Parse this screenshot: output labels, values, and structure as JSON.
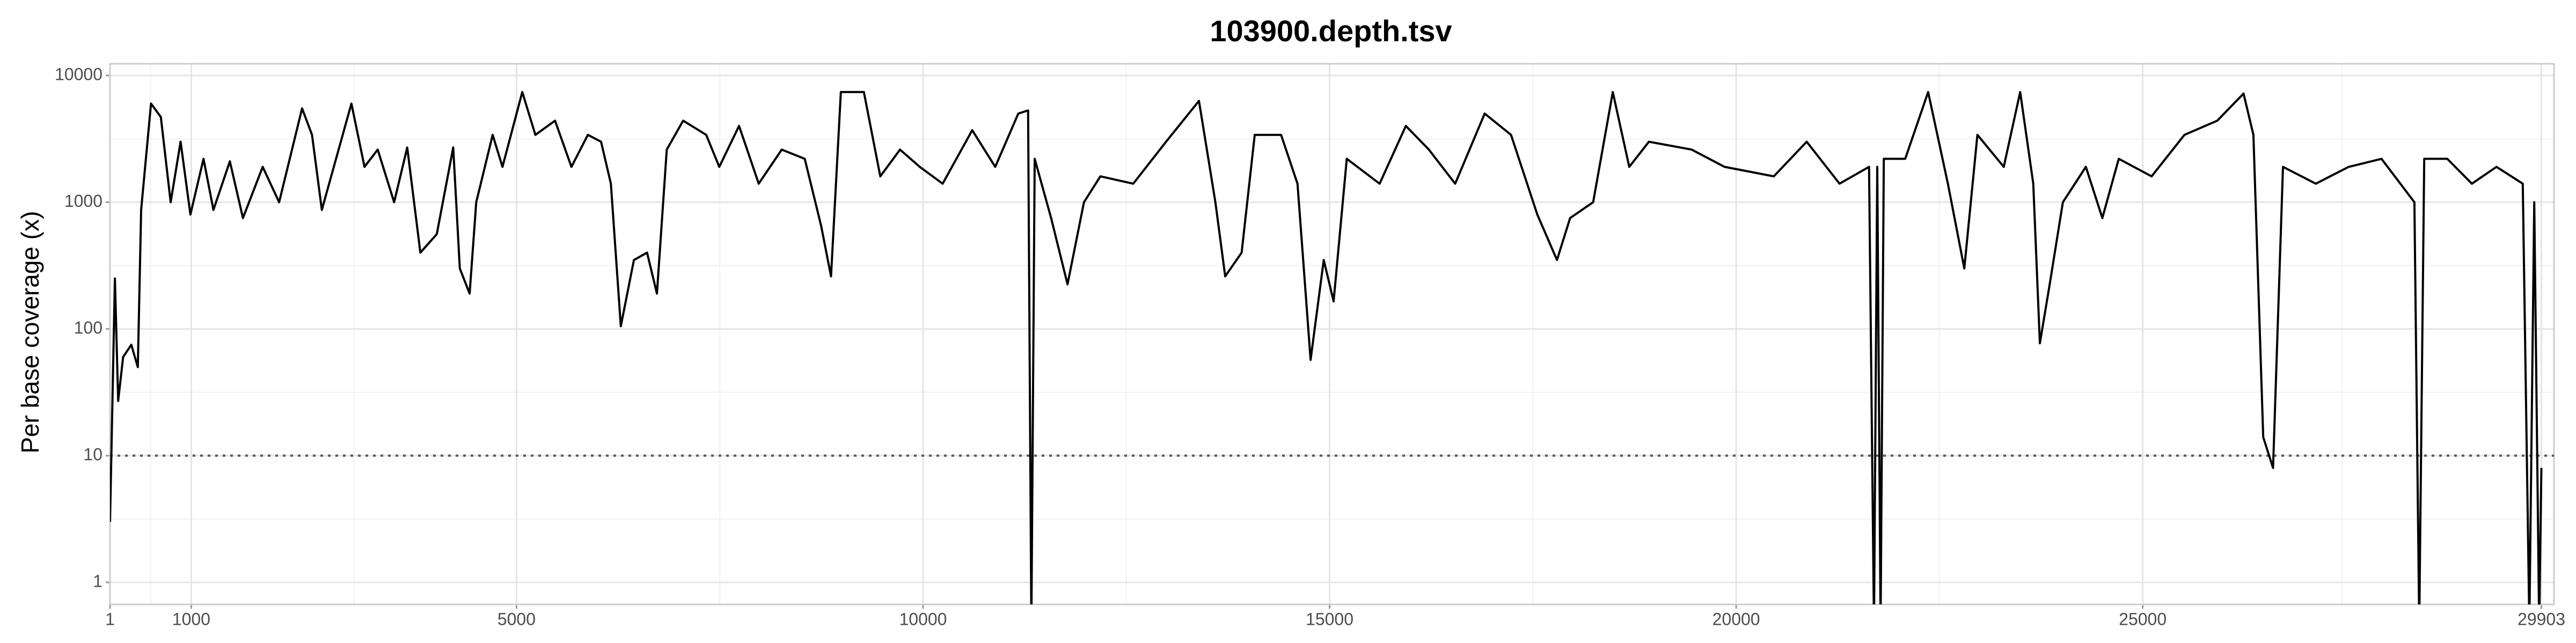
{
  "chart_data": {
    "type": "line",
    "title": "103900.depth.tsv",
    "y_label": "Per base coverage (x)",
    "log_y": true,
    "grid": true,
    "hline": 10,
    "xlim": [
      1,
      30058
    ],
    "ylim": [
      0.67,
      12370
    ],
    "xticks": [
      1,
      1000,
      5000,
      10000,
      15000,
      20000,
      25000,
      29903
    ],
    "yticks": [
      1,
      10,
      100,
      1000,
      10000
    ],
    "series": [
      {
        "color": "#000000",
        "x": [
          1,
          61,
          101,
          162,
          263,
          343,
          384,
          505,
          626,
          747,
          869,
          990,
          1151,
          1273,
          1475,
          1636,
          1879,
          2081,
          2363,
          2485,
          2606,
          2970,
          3131,
          3293,
          3495,
          3656,
          3818,
          4020,
          4222,
          4303,
          4424,
          4505,
          4707,
          4828,
          5071,
          5232,
          5474,
          5676,
          5878,
          6040,
          6161,
          6283,
          6444,
          6606,
          6727,
          6848,
          7050,
          7333,
          7494,
          7737,
          7979,
          8262,
          8545,
          8747,
          8868,
          8989,
          9272,
          9474,
          9717,
          9959,
          10241,
          10605,
          10888,
          11171,
          11292,
          11332,
          11373,
          11575,
          11777,
          11979,
          12181,
          12585,
          12989,
          13393,
          13595,
          13716,
          13918,
          14079,
          14403,
          14605,
          14766,
          14928,
          15049,
          15211,
          15615,
          15938,
          16221,
          16544,
          16907,
          17231,
          17554,
          17796,
          17958,
          18241,
          18483,
          18685,
          18927,
          19453,
          19857,
          20463,
          20867,
          21271,
          21634,
          21695,
          21735,
          21776,
          21816,
          22079,
          22361,
          22604,
          22806,
          22967,
          23291,
          23493,
          23654,
          23735,
          23856,
          24018,
          24301,
          24503,
          24705,
          25109,
          25513,
          25917,
          26240,
          26361,
          26482,
          26603,
          26725,
          27129,
          27533,
          27937,
          28341,
          28401,
          28462,
          28745,
          29048,
          29351,
          29674,
          29755,
          29815,
          29876,
          29903
        ],
        "values": [
          3,
          250,
          27,
          60,
          75,
          50,
          870,
          6000,
          4700,
          1000,
          3000,
          800,
          2200,
          870,
          2100,
          750,
          1900,
          1000,
          5500,
          3400,
          870,
          6000,
          1900,
          2600,
          1000,
          2700,
          400,
          560,
          2700,
          300,
          190,
          1000,
          3400,
          1900,
          7400,
          3400,
          4400,
          1900,
          3400,
          3000,
          1400,
          105,
          350,
          400,
          190,
          2600,
          4400,
          3400,
          1900,
          4000,
          1400,
          2600,
          2200,
          650,
          260,
          7400,
          7400,
          1600,
          2600,
          1900,
          1400,
          3700,
          1900,
          5000,
          5300,
          0,
          2200,
          750,
          225,
          1000,
          1600,
          1400,
          3000,
          6300,
          1000,
          260,
          400,
          3400,
          3400,
          1400,
          57,
          350,
          165,
          2200,
          1400,
          4000,
          2600,
          1400,
          5000,
          3400,
          800,
          350,
          750,
          1000,
          7400,
          1900,
          3000,
          2600,
          1900,
          1600,
          3000,
          1400,
          1900,
          0,
          1900,
          0,
          2200,
          2200,
          7400,
          1400,
          300,
          3400,
          1900,
          7400,
          1400,
          77,
          225,
          1000,
          1900,
          750,
          2200,
          1600,
          3400,
          4400,
          7200,
          3400,
          14,
          8,
          1900,
          1400,
          1900,
          2200,
          1000,
          0,
          2200,
          2200,
          1400,
          1900,
          1400,
          0,
          1000,
          0,
          8
        ]
      }
    ]
  }
}
